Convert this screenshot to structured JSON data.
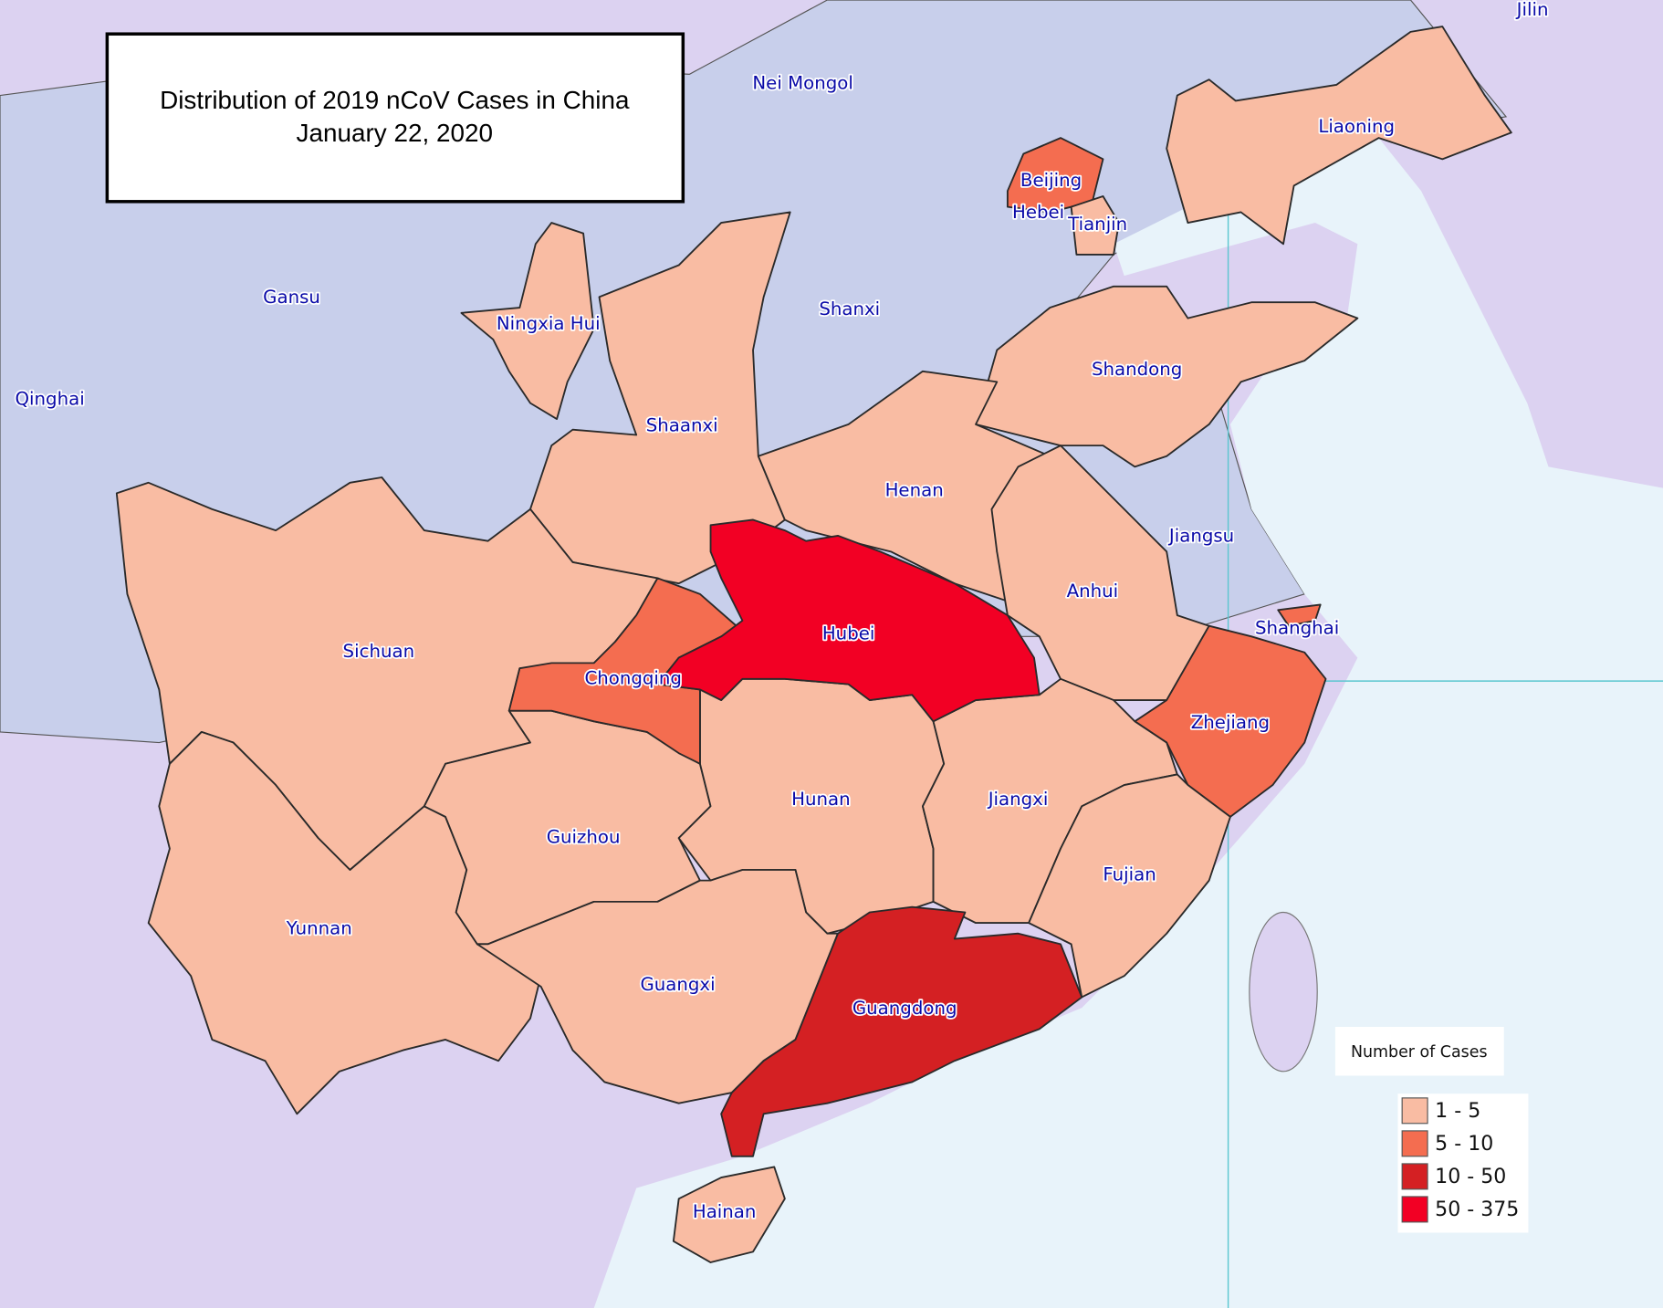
{
  "title": {
    "lines": [
      "Distribution of 2019 nCoV Cases in China",
      "January 22, 2020"
    ]
  },
  "legend": {
    "title": "Number of Cases",
    "items": [
      {
        "label": "1 - 5",
        "color": "#f9bca3"
      },
      {
        "label": "5 - 10",
        "color": "#f46d50"
      },
      {
        "label": "10 - 50",
        "color": "#d42023"
      },
      {
        "label": "50 - 375",
        "color": "#f20024"
      }
    ]
  },
  "provinces": [
    {
      "name": "Jilin"
    },
    {
      "name": "Nei Mongol"
    },
    {
      "name": "Liaoning",
      "color": "#f9bca3"
    },
    {
      "name": "Beijing",
      "color": "#f46d50"
    },
    {
      "name": "Hebei"
    },
    {
      "name": "Tianjin",
      "color": "#f9bca3"
    },
    {
      "name": "Gansu"
    },
    {
      "name": "Shanxi"
    },
    {
      "name": "Ningxia Hui",
      "color": "#f9bca3"
    },
    {
      "name": "Shandong",
      "color": "#f9bca3"
    },
    {
      "name": "Qinghai"
    },
    {
      "name": "Shaanxi",
      "color": "#f9bca3"
    },
    {
      "name": "Henan",
      "color": "#f9bca3"
    },
    {
      "name": "Jiangsu"
    },
    {
      "name": "Anhui",
      "color": "#f9bca3"
    },
    {
      "name": "Shanghai",
      "color": "#f46d50"
    },
    {
      "name": "Hubei",
      "color": "#f20024"
    },
    {
      "name": "Sichuan",
      "color": "#f9bca3"
    },
    {
      "name": "Chongqing",
      "color": "#f46d50"
    },
    {
      "name": "Zhejiang",
      "color": "#f46d50"
    },
    {
      "name": "Hunan",
      "color": "#f9bca3"
    },
    {
      "name": "Jiangxi",
      "color": "#f9bca3"
    },
    {
      "name": "Guizhou",
      "color": "#f9bca3"
    },
    {
      "name": "Fujian",
      "color": "#f9bca3"
    },
    {
      "name": "Yunnan",
      "color": "#f9bca3"
    },
    {
      "name": "Guangxi",
      "color": "#f9bca3"
    },
    {
      "name": "Guangdong",
      "color": "#d42023"
    },
    {
      "name": "Hainan",
      "color": "#f9bca3"
    }
  ]
}
